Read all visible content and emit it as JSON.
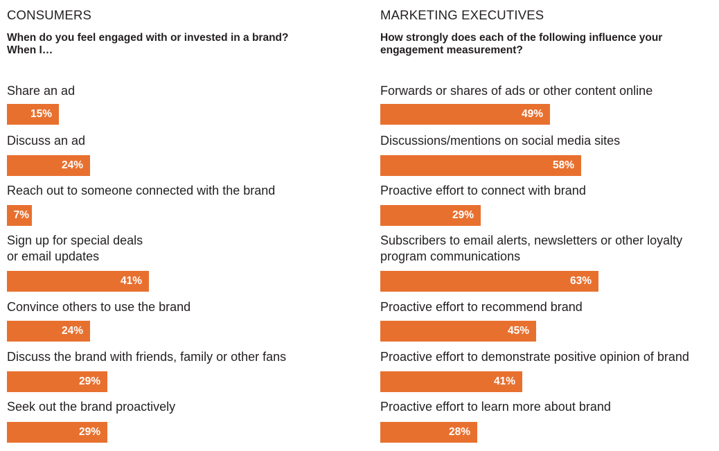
{
  "chart_data": [
    {
      "type": "bar",
      "orientation": "horizontal",
      "title": "CONSUMERS",
      "subtitle": "When do you feel engaged with or invested in a brand? When I…",
      "subtitle_lines": [
        "When do you feel engaged with or invested in a brand?",
        "When I…"
      ],
      "categories": [
        "Share an ad",
        "Discuss an ad",
        "Reach out to someone connected with the brand",
        "Sign up for special deals or email updates",
        "Convince others to use the brand",
        "Discuss the brand with friends, family or other fans",
        "Seek out the brand proactively"
      ],
      "category_lines": [
        [
          "Share an ad"
        ],
        [
          "Discuss an ad"
        ],
        [
          "Reach out to someone connected with the brand"
        ],
        [
          "Sign up for special deals",
          "or email updates"
        ],
        [
          "Convince others to use the brand"
        ],
        [
          "Discuss the brand with friends, family or other fans"
        ],
        [
          "Seek out the brand proactively"
        ]
      ],
      "values": [
        15,
        24,
        7,
        41,
        24,
        29,
        29
      ],
      "value_labels": [
        "15%",
        "24%",
        "7%",
        "41%",
        "24%",
        "29%",
        "29%"
      ],
      "unit": "%",
      "xlim": [
        0,
        100
      ],
      "grid": false,
      "bar_color": "#e8702f"
    },
    {
      "type": "bar",
      "orientation": "horizontal",
      "title": "MARKETING EXECUTIVES",
      "subtitle": "How strongly does each of the following influence your engagement measurement?",
      "subtitle_lines": [
        "How strongly does each of the following influence your",
        "engagement measurement?"
      ],
      "categories": [
        "Forwards or shares of ads or other content online",
        "Discussions/mentions on social media sites",
        "Proactive effort to connect with brand",
        "Subscribers to email alerts, newsletters or other loyalty program communications",
        "Proactive effort to recommend brand",
        "Proactive effort to demonstrate positive opinion of brand",
        "Proactive effort to learn more about brand"
      ],
      "category_lines": [
        [
          "Forwards or shares of ads or other content online"
        ],
        [
          "Discussions/mentions on social media sites"
        ],
        [
          "Proactive effort to connect with brand"
        ],
        [
          "Subscribers to email alerts, newsletters or other loyalty",
          "program communications"
        ],
        [
          "Proactive effort to recommend brand"
        ],
        [
          "Proactive effort to demonstrate positive opinion of brand"
        ],
        [
          "Proactive effort to learn more about brand"
        ]
      ],
      "values": [
        49,
        58,
        29,
        63,
        45,
        41,
        28
      ],
      "value_labels": [
        "49%",
        "58%",
        "29%",
        "63%",
        "45%",
        "41%",
        "28%"
      ],
      "unit": "%",
      "xlim": [
        0,
        100
      ],
      "grid": false,
      "bar_color": "#e8702f"
    }
  ]
}
